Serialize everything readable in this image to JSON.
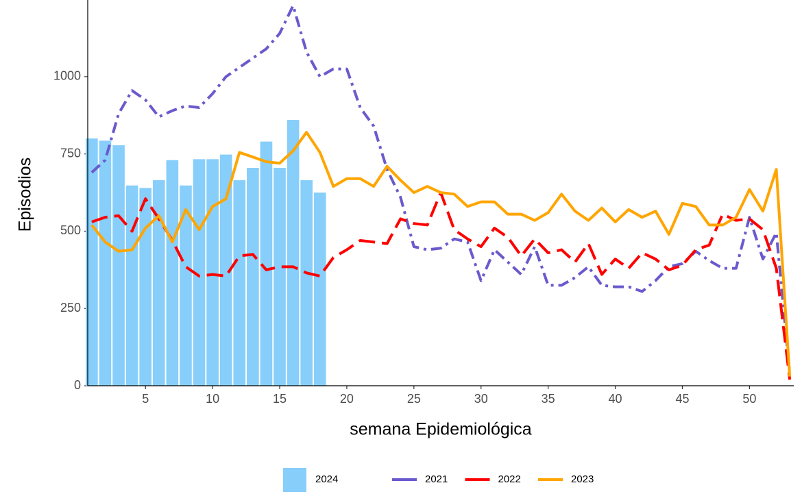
{
  "chart_data": {
    "type": "combo",
    "x_label": "semana Epidemiológica",
    "y_label": "Episodios",
    "xlim": [
      0.7,
      53.3
    ],
    "xticks": [
      5,
      10,
      15,
      20,
      25,
      30,
      35,
      40,
      45,
      50
    ],
    "ylim": [
      0,
      1237
    ],
    "yticks": [
      0,
      250,
      500,
      750,
      1000
    ],
    "legend": "bottom",
    "series": [
      {
        "name": "2024",
        "type": "bar",
        "color": "#87cefa",
        "x": [
          1,
          2,
          3,
          4,
          5,
          6,
          7,
          8,
          9,
          10,
          11,
          12,
          13,
          14,
          15,
          16,
          17,
          18
        ],
        "values": [
          800,
          793,
          778,
          648,
          640,
          665,
          730,
          648,
          733,
          733,
          748,
          665,
          705,
          790,
          705,
          860,
          665,
          625
        ]
      },
      {
        "name": "2021",
        "type": "line",
        "dash": "dashdot",
        "color": "#6a5acd",
        "x": [
          1,
          2,
          3,
          4,
          5,
          6,
          7,
          8,
          9,
          10,
          11,
          12,
          13,
          14,
          15,
          16,
          17,
          18,
          19,
          20,
          21,
          22,
          23,
          24,
          25,
          26,
          27,
          28,
          29,
          30,
          31,
          32,
          33,
          34,
          35,
          36,
          37,
          38,
          39,
          40,
          41,
          42,
          43,
          44,
          45,
          46,
          47,
          48,
          49,
          50,
          51,
          52,
          53
        ],
        "values": [
          690,
          730,
          880,
          955,
          925,
          870,
          890,
          905,
          900,
          945,
          1000,
          1030,
          1060,
          1090,
          1140,
          1230,
          1080,
          1000,
          1025,
          1025,
          900,
          840,
          700,
          610,
          450,
          440,
          445,
          475,
          465,
          340,
          440,
          400,
          360,
          450,
          325,
          325,
          350,
          385,
          325,
          320,
          320,
          305,
          340,
          385,
          395,
          435,
          405,
          380,
          380,
          545,
          410,
          495,
          40
        ]
      },
      {
        "name": "2022",
        "type": "line",
        "dash": "dashed",
        "color": "#ff0000",
        "x": [
          1,
          2,
          3,
          4,
          5,
          6,
          7,
          8,
          9,
          10,
          11,
          12,
          13,
          14,
          15,
          16,
          17,
          18,
          19,
          20,
          21,
          22,
          23,
          24,
          25,
          26,
          27,
          28,
          29,
          30,
          31,
          32,
          33,
          34,
          35,
          36,
          37,
          38,
          39,
          40,
          41,
          42,
          43,
          44,
          45,
          46,
          47,
          48,
          49,
          50,
          51,
          52,
          53
        ],
        "values": [
          530,
          545,
          550,
          500,
          605,
          540,
          470,
          385,
          355,
          360,
          355,
          420,
          425,
          375,
          385,
          385,
          365,
          355,
          415,
          440,
          470,
          465,
          460,
          540,
          525,
          520,
          625,
          505,
          475,
          450,
          510,
          480,
          420,
          475,
          430,
          440,
          400,
          460,
          360,
          410,
          380,
          430,
          410,
          375,
          390,
          440,
          455,
          555,
          535,
          540,
          505,
          380,
          20
        ]
      },
      {
        "name": "2023",
        "type": "line",
        "dash": "solid",
        "color": "#ffa500",
        "x": [
          1,
          2,
          3,
          4,
          5,
          6,
          7,
          8,
          9,
          10,
          11,
          12,
          13,
          14,
          15,
          16,
          17,
          18,
          19,
          20,
          21,
          22,
          23,
          24,
          25,
          26,
          27,
          28,
          29,
          30,
          31,
          32,
          33,
          34,
          35,
          36,
          37,
          38,
          39,
          40,
          41,
          42,
          43,
          44,
          45,
          46,
          47,
          48,
          49,
          50,
          51,
          52,
          53
        ],
        "values": [
          520,
          465,
          435,
          440,
          510,
          550,
          465,
          570,
          505,
          580,
          605,
          755,
          740,
          725,
          720,
          760,
          820,
          755,
          645,
          670,
          670,
          645,
          710,
          665,
          625,
          645,
          625,
          620,
          580,
          595,
          595,
          555,
          555,
          535,
          560,
          620,
          565,
          535,
          575,
          530,
          570,
          545,
          565,
          490,
          590,
          580,
          520,
          520,
          545,
          635,
          565,
          700,
          30
        ]
      }
    ]
  }
}
